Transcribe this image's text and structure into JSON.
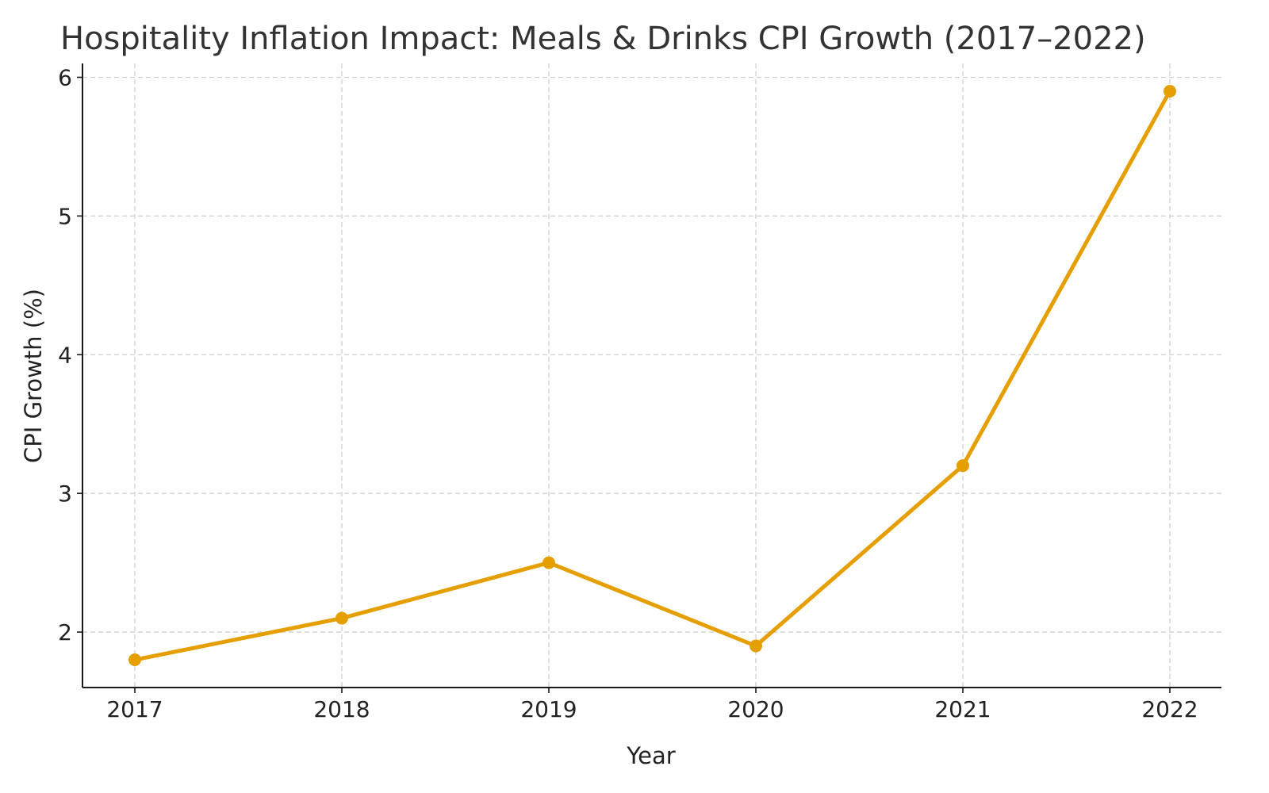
{
  "chart_data": {
    "type": "line",
    "title": "Hospitality Inflation Impact: Meals & Drinks CPI Growth (2017–2022)",
    "xlabel": "Year",
    "ylabel": "CPI Growth (%)",
    "categories": [
      "2017",
      "2018",
      "2019",
      "2020",
      "2021",
      "2022"
    ],
    "series": [
      {
        "values": [
          1.8,
          2.1,
          2.5,
          1.9,
          3.2,
          5.9
        ],
        "color": "#E69F00"
      }
    ],
    "yticks": [
      "2",
      "3",
      "4",
      "5",
      "6"
    ],
    "ylim": [
      1.6,
      6.1
    ],
    "grid": true,
    "legend": "none"
  }
}
